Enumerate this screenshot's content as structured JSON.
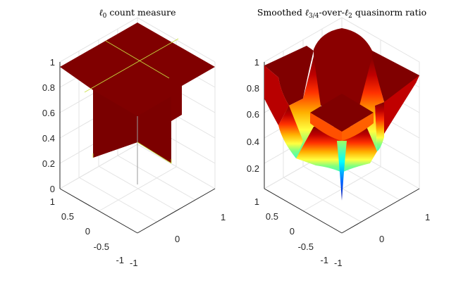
{
  "chart_data": [
    {
      "type": "surface",
      "title": {
        "main": "ℓ",
        "sub": "0",
        "rest": " count measure"
      },
      "x_ticks": [
        "-1",
        "0",
        "1"
      ],
      "y_ticks": [
        "-1",
        "-0.5",
        "0",
        "0.5",
        "1"
      ],
      "z_ticks": [
        "0",
        "0.2",
        "0.4",
        "0.6",
        "0.8",
        "1"
      ],
      "zlim": [
        0,
        1
      ],
      "xlim": [
        -1,
        1
      ],
      "ylim": [
        -1,
        1
      ],
      "surface_color": "#800000",
      "edge_color": "#c8e040",
      "description_points": {
        "on_axes_value": 0,
        "elsewhere_value": 1
      }
    },
    {
      "type": "surface",
      "title": {
        "pre": "Smoothed ",
        "main": "ℓ",
        "sub": "3/4",
        "mid": "-over-",
        "main2": "ℓ",
        "sub2": "2",
        "rest": " quasinorm ratio"
      },
      "x_ticks": [
        "-1",
        "0",
        "1"
      ],
      "y_ticks": [
        "-1",
        "-0.5",
        "0",
        "0.5",
        "1"
      ],
      "z_ticks": [
        "0.2",
        "0.4",
        "0.6",
        "0.8",
        "1"
      ],
      "zlim": [
        0,
        1
      ],
      "xlim": [
        -1,
        1
      ],
      "ylim": [
        -1,
        1
      ],
      "colormap": [
        "#00008f",
        "#0000ff",
        "#00ffff",
        "#ffff00",
        "#ff0000",
        "#800000"
      ],
      "min_value": 0
    }
  ]
}
